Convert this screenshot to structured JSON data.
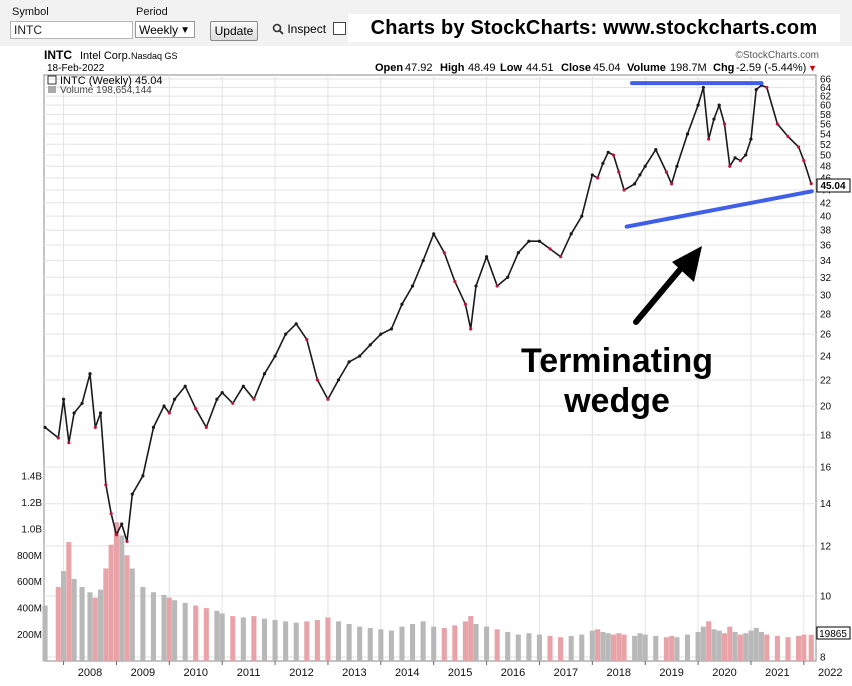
{
  "toolbar": {
    "symbol_label": "Symbol",
    "symbol_value": "INTC",
    "period_label": "Period",
    "period_value": "Weekly",
    "update_label": "Update",
    "inspect_label": "Inspect",
    "brand_text": "Charts by StockCharts:  www.stockcharts.com"
  },
  "header": {
    "ticker": "INTC",
    "company": "Intel Corp.",
    "exchange": "Nasdaq GS",
    "date": "18-Feb-2022",
    "copyright": "©StockCharts.com",
    "open_label": "Open",
    "open": "47.92",
    "high_label": "High",
    "high": "48.49",
    "low_label": "Low",
    "low": "44.51",
    "close_label": "Close",
    "close": "45.04",
    "volume_label": "Volume",
    "volume": "198.7M",
    "chg_label": "Chg",
    "chg": "-2.59 (-5.44%)",
    "legend_price": "INTC (Weekly) 45.04",
    "legend_volume": "Volume 198,654,144"
  },
  "annotation": {
    "line1": "Terminating",
    "line2": "wedge"
  },
  "chart_data": {
    "type": "line",
    "title": "INTC Intel Corp. Nasdaq GS",
    "series_name": "INTC (Weekly)",
    "scale": "log",
    "ylim": [
      8,
      66
    ],
    "price_ticks": [
      8,
      10,
      12,
      14,
      16,
      18,
      20,
      22,
      24,
      26,
      28,
      30,
      32,
      34,
      36,
      38,
      40,
      42,
      44,
      46,
      48,
      50,
      52,
      54,
      56,
      58,
      60,
      62,
      64,
      66
    ],
    "volume_ticks": [
      "200M",
      "400M",
      "600M",
      "800M",
      "1.0B",
      "1.2B",
      "1.4B"
    ],
    "volume_tick_values": [
      200,
      400,
      600,
      800,
      1000,
      1200,
      1400
    ],
    "x_ticks": [
      "2008",
      "2009",
      "2010",
      "2011",
      "2012",
      "2013",
      "2014",
      "2015",
      "2016",
      "2017",
      "2018",
      "2019",
      "2020",
      "2021",
      "2022"
    ],
    "last_price_label": "45.04",
    "last_volume_label": "19865",
    "x": [
      2007.65,
      2007.9,
      2008.0,
      2008.1,
      2008.2,
      2008.35,
      2008.5,
      2008.6,
      2008.7,
      2008.8,
      2008.9,
      2009.0,
      2009.1,
      2009.2,
      2009.3,
      2009.5,
      2009.7,
      2009.9,
      2010.0,
      2010.1,
      2010.3,
      2010.5,
      2010.7,
      2010.9,
      2011.0,
      2011.2,
      2011.4,
      2011.6,
      2011.8,
      2012.0,
      2012.2,
      2012.4,
      2012.6,
      2012.8,
      2013.0,
      2013.2,
      2013.4,
      2013.6,
      2013.8,
      2014.0,
      2014.2,
      2014.4,
      2014.6,
      2014.8,
      2015.0,
      2015.2,
      2015.4,
      2015.6,
      2015.7,
      2015.8,
      2016.0,
      2016.2,
      2016.4,
      2016.6,
      2016.8,
      2017.0,
      2017.2,
      2017.4,
      2017.6,
      2017.8,
      2018.0,
      2018.1,
      2018.2,
      2018.3,
      2018.4,
      2018.5,
      2018.6,
      2018.8,
      2018.9,
      2019.0,
      2019.2,
      2019.4,
      2019.5,
      2019.6,
      2019.8,
      2020.0,
      2020.1,
      2020.2,
      2020.3,
      2020.4,
      2020.5,
      2020.6,
      2020.7,
      2020.8,
      2020.9,
      2021.0,
      2021.1,
      2021.2,
      2021.3,
      2021.5,
      2021.7,
      2021.9,
      2022.0,
      2022.14
    ],
    "close": [
      18.5,
      17.8,
      20.5,
      17.5,
      19.5,
      20.2,
      22.5,
      18.5,
      19.5,
      15.0,
      13.5,
      12.5,
      13.0,
      12.2,
      14.5,
      15.5,
      18.5,
      20.0,
      19.5,
      20.5,
      21.5,
      19.8,
      18.5,
      20.5,
      21.0,
      20.2,
      21.5,
      20.5,
      22.5,
      24.0,
      26.0,
      27.0,
      25.5,
      22.0,
      20.5,
      22.0,
      23.5,
      24.0,
      25.0,
      26.0,
      26.5,
      29.0,
      31.0,
      34.0,
      37.5,
      35.0,
      31.5,
      29.0,
      26.5,
      31.0,
      34.5,
      31.0,
      32.0,
      35.0,
      36.5,
      36.5,
      35.5,
      34.5,
      37.5,
      40.0,
      46.5,
      46.0,
      48.5,
      50.5,
      50.0,
      47.0,
      44.0,
      45.0,
      46.5,
      48.0,
      51.0,
      47.0,
      45.0,
      48.0,
      54.0,
      60.0,
      64.0,
      53.0,
      57.0,
      60.0,
      56.0,
      48.0,
      49.5,
      49.0,
      50.0,
      53.0,
      63.5,
      64.5,
      64.0,
      56.0,
      53.5,
      51.5,
      49.0,
      45.04
    ],
    "volume": [
      420,
      560,
      680,
      900,
      620,
      560,
      520,
      480,
      540,
      700,
      880,
      1050,
      950,
      800,
      700,
      560,
      520,
      500,
      480,
      460,
      440,
      420,
      400,
      380,
      360,
      340,
      330,
      340,
      320,
      310,
      300,
      290,
      300,
      310,
      330,
      300,
      280,
      260,
      250,
      240,
      230,
      260,
      280,
      300,
      260,
      250,
      270,
      300,
      340,
      280,
      260,
      240,
      220,
      200,
      210,
      200,
      190,
      180,
      190,
      200,
      230,
      240,
      220,
      210,
      200,
      210,
      200,
      190,
      210,
      200,
      190,
      180,
      190,
      180,
      200,
      220,
      260,
      300,
      240,
      230,
      210,
      260,
      220,
      200,
      210,
      230,
      250,
      220,
      200,
      190,
      180,
      190,
      200,
      198.7
    ],
    "trendlines": [
      {
        "from": [
          2018.65,
          38.5
        ],
        "to": [
          2022.15,
          43.8
        ]
      },
      {
        "from": [
          2018.75,
          65.0
        ],
        "to": [
          2021.2,
          65.0
        ]
      }
    ],
    "grid": true
  }
}
